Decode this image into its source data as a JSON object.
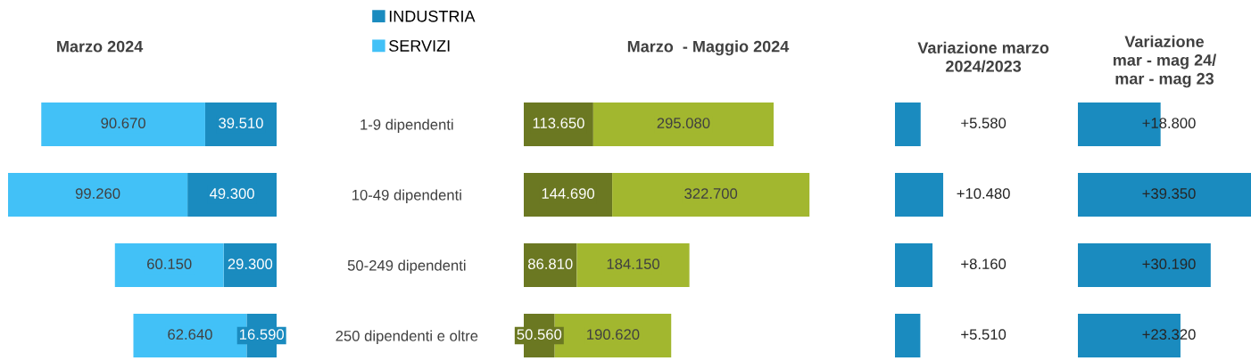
{
  "chart_data": [
    {
      "type": "bar",
      "orientation": "horizontal",
      "stacked": true,
      "title": "Marzo 2024",
      "categories": [
        "1-9 dipendenti",
        "10-49 dipendenti",
        "50-249 dipendenti",
        "250 dipendenti e oltre"
      ],
      "legend": "top right",
      "data_labels": true,
      "series": [
        {
          "name": "INDUSTRIA",
          "color": "#1a8bbf",
          "values": [
            39510,
            49300,
            29300,
            16590
          ],
          "value_labels": [
            "39.510",
            "49.300",
            "29.300",
            "16.590"
          ]
        },
        {
          "name": "SERVIZI",
          "color": "#42c1f7",
          "values": [
            90670,
            99260,
            60150,
            62640
          ],
          "value_labels": [
            "90.670",
            "99.260",
            "60.150",
            "62.640"
          ]
        }
      ]
    },
    {
      "type": "bar",
      "orientation": "horizontal",
      "stacked": true,
      "title": "Marzo  - Maggio 2024",
      "categories": [
        null,
        null,
        null,
        null
      ],
      "data_labels": true,
      "series": [
        {
          "color": "#6b7822",
          "values": [
            113650,
            144690,
            86810,
            50560
          ],
          "value_labels": [
            "113.650",
            "144.690",
            "86.810",
            "50.560"
          ]
        },
        {
          "color": "#a2b72f",
          "values": [
            295080,
            322700,
            184150,
            190620
          ],
          "value_labels": [
            "295.080",
            "322.700",
            "184.150",
            "190.620"
          ]
        }
      ]
    },
    {
      "type": "bar",
      "orientation": "horizontal",
      "title": "Variazione marzo\n2024/2023",
      "categories": [
        null,
        null,
        null,
        null
      ],
      "data_labels": true,
      "series": [
        {
          "color": "#1a8bbf",
          "values": [
            5580,
            10480,
            8160,
            5510
          ],
          "value_labels": [
            "+5.580",
            "+10.480",
            "+8.160",
            "+5.510"
          ]
        }
      ]
    },
    {
      "type": "bar",
      "orientation": "horizontal",
      "title": "Variazione\nmar - mag 24/\nmar - mag 23",
      "categories": [
        null,
        null,
        null,
        null
      ],
      "data_labels": true,
      "series": [
        {
          "color": "#1a8bbf",
          "values": [
            18800,
            39350,
            30190,
            23320
          ],
          "value_labels": [
            "+18.800",
            "+39.350",
            "+30.190",
            "+23.320"
          ]
        }
      ]
    }
  ]
}
